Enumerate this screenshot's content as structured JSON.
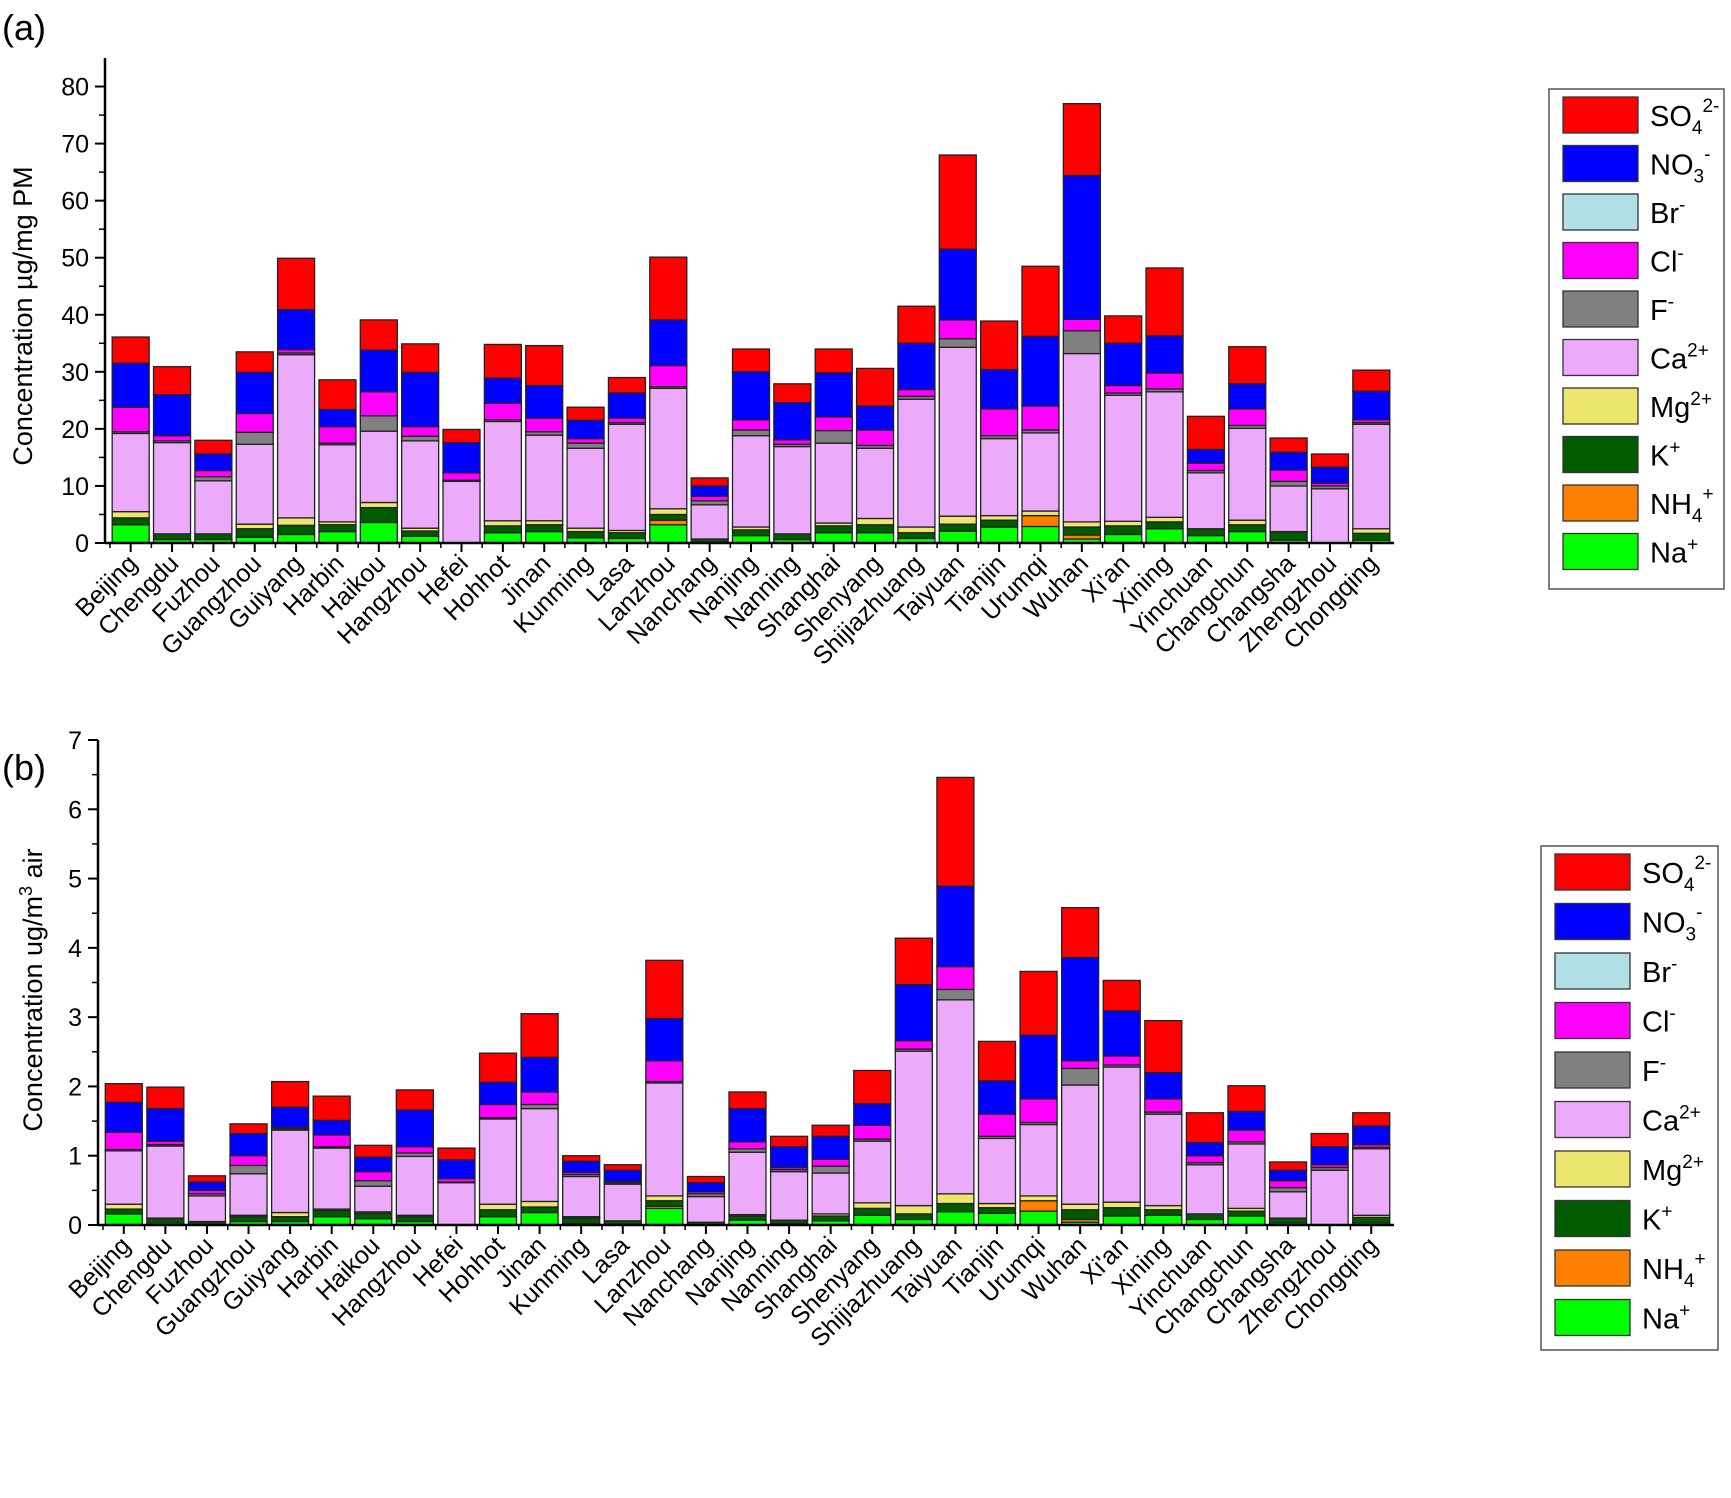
{
  "figure": {
    "panels": [
      "(a)",
      "(b)"
    ]
  },
  "legend": {
    "entries": [
      {
        "key": "SO4",
        "base": "SO",
        "sub": "4",
        "sup": "2-",
        "color": "#ff0000"
      },
      {
        "key": "NO3",
        "base": "NO",
        "sub": "3",
        "sup": "-",
        "color": "#0000ff"
      },
      {
        "key": "Br",
        "base": "Br",
        "sub": "",
        "sup": "-",
        "color": "#b0e0e6"
      },
      {
        "key": "Cl",
        "base": "Cl",
        "sub": "",
        "sup": "-",
        "color": "#ff00ff"
      },
      {
        "key": "F",
        "base": "F",
        "sub": "",
        "sup": "-",
        "color": "#808080"
      },
      {
        "key": "Ca",
        "base": "Ca",
        "sub": "",
        "sup": "2+",
        "color": "#ecabfa"
      },
      {
        "key": "Mg",
        "base": "Mg",
        "sub": "",
        "sup": "2+",
        "color": "#ece66e"
      },
      {
        "key": "K",
        "base": "K",
        "sub": "",
        "sup": "+",
        "color": "#005a00"
      },
      {
        "key": "NH4",
        "base": "NH",
        "sub": "4",
        "sup": "+",
        "color": "#ff8000"
      },
      {
        "key": "Na",
        "base": "Na",
        "sub": "",
        "sup": "+",
        "color": "#00ff00"
      }
    ]
  },
  "chart_data": [
    {
      "type": "bar",
      "stacked": true,
      "panel": "(a)",
      "title": "",
      "xlabel": "",
      "ylabel": "Concentration µg/mg PM",
      "ylim": [
        0,
        85
      ],
      "yticks": [
        0,
        10,
        20,
        30,
        40,
        50,
        60,
        70,
        80
      ],
      "grid": false,
      "legend_position": "right",
      "categories": [
        "Beijing",
        "Chengdu",
        "Fuzhou",
        "Guangzhou",
        "Guiyang",
        "Harbin",
        "Haikou",
        "Hangzhou",
        "Hefei",
        "Hohhot",
        "Jinan",
        "Kunming",
        "Lasa",
        "Lanzhou",
        "Nanchang",
        "Nanjing",
        "Nanning",
        "Shanghai",
        "Shenyang",
        "Shijiazhuang",
        "Taiyuan",
        "Tianjin",
        "Urumqi",
        "Wuhan",
        "Xi'an",
        "Xining",
        "Yinchuan",
        "Changchun",
        "Changsha",
        "Zhengzhou",
        "Chongqing"
      ],
      "series": [
        {
          "name": "Na+",
          "key": "Na",
          "values": [
            3.2,
            0.6,
            0.6,
            1.0,
            1.5,
            2.0,
            3.6,
            1.2,
            0.0,
            1.8,
            2.0,
            0.9,
            0.8,
            3.2,
            0.0,
            1.3,
            0.6,
            1.8,
            1.8,
            0.8,
            2.1,
            2.8,
            2.9,
            0.7,
            1.5,
            2.5,
            1.3,
            2.0,
            0.5,
            0.0,
            0.5
          ]
        },
        {
          "name": "NH4+",
          "key": "NH4",
          "values": [
            0.0,
            0.0,
            0.0,
            0.0,
            0.0,
            0.0,
            0.0,
            0.0,
            0.0,
            0.0,
            0.0,
            0.0,
            0.0,
            0.8,
            0.0,
            0.0,
            0.0,
            0.0,
            0.0,
            0.0,
            0.0,
            0.0,
            1.9,
            0.7,
            0.0,
            0.0,
            0.0,
            0.0,
            0.0,
            0.0,
            0.0
          ]
        },
        {
          "name": "K+",
          "key": "K",
          "values": [
            1.2,
            1.0,
            1.0,
            1.5,
            1.6,
            1.2,
            2.6,
            0.9,
            0.0,
            1.2,
            1.2,
            1.1,
            1.0,
            1.0,
            0.7,
            1.0,
            1.0,
            1.2,
            1.4,
            1.0,
            1.2,
            1.2,
            0.0,
            1.4,
            1.5,
            1.2,
            1.2,
            1.2,
            1.5,
            0.0,
            1.2
          ]
        },
        {
          "name": "Mg2+",
          "key": "Mg",
          "values": [
            1.1,
            0.0,
            0.0,
            0.8,
            1.3,
            0.5,
            0.9,
            0.5,
            0.0,
            0.9,
            0.7,
            0.6,
            0.4,
            1.0,
            0.0,
            0.5,
            0.0,
            0.5,
            1.1,
            1.0,
            1.4,
            0.8,
            0.8,
            0.9,
            0.8,
            0.8,
            0.0,
            0.8,
            0.0,
            0.0,
            0.8
          ]
        },
        {
          "name": "Ca2+",
          "key": "Ca",
          "values": [
            13.7,
            16.0,
            9.3,
            14.0,
            28.6,
            13.5,
            12.5,
            15.3,
            10.8,
            17.4,
            15.0,
            14.0,
            18.6,
            21.1,
            6.0,
            16.0,
            15.3,
            14.0,
            12.3,
            22.4,
            29.6,
            13.5,
            13.7,
            29.5,
            22.1,
            22.0,
            9.8,
            16.1,
            8.0,
            9.5,
            18.3
          ]
        },
        {
          "name": "F-",
          "key": "F",
          "values": [
            0.3,
            0.3,
            0.7,
            2.1,
            0.3,
            0.3,
            2.7,
            0.8,
            0.2,
            0.3,
            0.6,
            0.9,
            0.3,
            0.3,
            0.7,
            1.0,
            0.4,
            2.2,
            0.5,
            0.5,
            1.5,
            0.5,
            0.5,
            4.0,
            0.4,
            0.5,
            0.4,
            0.5,
            0.8,
            0.5,
            0.3
          ]
        },
        {
          "name": "Cl-",
          "key": "Cl",
          "values": [
            4.3,
            0.9,
            1.1,
            3.3,
            0.6,
            2.9,
            4.2,
            1.7,
            1.3,
            2.9,
            2.4,
            0.8,
            0.8,
            3.7,
            0.8,
            1.8,
            0.8,
            2.4,
            2.7,
            1.2,
            3.3,
            4.7,
            4.2,
            2.0,
            1.3,
            2.8,
            1.3,
            2.9,
            2.0,
            0.5,
            0.5
          ]
        },
        {
          "name": "Br-",
          "key": "Br",
          "values": [
            0,
            0,
            0,
            0,
            0,
            0,
            0,
            0,
            0,
            0,
            0,
            0,
            0,
            0,
            0,
            0,
            0,
            0,
            0,
            0,
            0,
            0,
            0,
            0,
            0,
            0,
            0,
            0,
            0,
            0,
            0
          ]
        },
        {
          "name": "NO3-",
          "key": "NO3",
          "values": [
            7.7,
            7.2,
            2.9,
            7.2,
            7.0,
            3.0,
            7.3,
            9.5,
            5.3,
            4.4,
            5.7,
            3.2,
            4.4,
            8.0,
            1.8,
            8.4,
            6.5,
            7.7,
            4.2,
            8.1,
            12.4,
            6.9,
            12.2,
            25.2,
            7.4,
            6.5,
            2.4,
            4.4,
            3.1,
            2.8,
            5.0
          ]
        },
        {
          "name": "SO42-",
          "key": "SO4",
          "values": [
            4.6,
            4.9,
            2.4,
            3.6,
            9.0,
            5.2,
            5.3,
            5.0,
            2.3,
            5.9,
            7.0,
            2.3,
            2.7,
            11.0,
            1.4,
            4.0,
            3.3,
            4.2,
            6.6,
            6.5,
            16.5,
            8.5,
            12.3,
            12.6,
            4.8,
            11.9,
            5.8,
            6.5,
            2.5,
            2.3,
            3.7
          ]
        }
      ]
    },
    {
      "type": "bar",
      "stacked": true,
      "panel": "(b)",
      "title": "",
      "xlabel": "",
      "ylabel": "Concentration ug/m3 air",
      "ylim": [
        0,
        7
      ],
      "yticks": [
        0,
        1,
        2,
        3,
        4,
        5,
        6,
        7
      ],
      "grid": false,
      "legend_position": "right",
      "categories": [
        "Beijing",
        "Chengdu",
        "Fuzhou",
        "Guangzhou",
        "Guiyang",
        "Harbin",
        "Haikou",
        "Hangzhou",
        "Hefei",
        "Hohhot",
        "Jinan",
        "Kunming",
        "Lasa",
        "Lanzhou",
        "Nanchang",
        "Nanjing",
        "Nanning",
        "Shanghai",
        "Shenyang",
        "Shijiazhuang",
        "Taiyuan",
        "Tianjin",
        "Urumqi",
        "Wuhan",
        "Xi'an",
        "Xining",
        "Yinchuan",
        "Changchun",
        "Changsha",
        "Zhengzhou",
        "Chongqing"
      ],
      "series": [
        {
          "name": "Na+",
          "key": "Na",
          "values": [
            0.16,
            0.03,
            0.01,
            0.05,
            0.05,
            0.12,
            0.09,
            0.05,
            0.0,
            0.12,
            0.18,
            0.02,
            0.01,
            0.24,
            0.0,
            0.07,
            0.02,
            0.06,
            0.14,
            0.08,
            0.19,
            0.17,
            0.2,
            0.04,
            0.13,
            0.14,
            0.08,
            0.13,
            0.03,
            0.0,
            0.03
          ]
        },
        {
          "name": "NH4+",
          "key": "NH4",
          "values": [
            0.0,
            0.0,
            0.0,
            0.0,
            0.0,
            0.0,
            0.0,
            0.0,
            0.0,
            0.0,
            0.0,
            0.0,
            0.0,
            0.03,
            0.0,
            0.0,
            0.0,
            0.0,
            0.0,
            0.0,
            0.0,
            0.0,
            0.15,
            0.04,
            0.0,
            0.0,
            0.0,
            0.0,
            0.0,
            0.0,
            0.0
          ]
        },
        {
          "name": "K+",
          "key": "K",
          "values": [
            0.07,
            0.06,
            0.04,
            0.07,
            0.07,
            0.09,
            0.08,
            0.07,
            0.0,
            0.1,
            0.08,
            0.08,
            0.05,
            0.08,
            0.04,
            0.06,
            0.05,
            0.07,
            0.1,
            0.08,
            0.12,
            0.08,
            0.0,
            0.14,
            0.12,
            0.08,
            0.08,
            0.07,
            0.07,
            0.0,
            0.08
          ]
        },
        {
          "name": "Mg2+",
          "key": "Mg",
          "values": [
            0.07,
            0.01,
            0.0,
            0.02,
            0.06,
            0.02,
            0.02,
            0.02,
            0.0,
            0.08,
            0.08,
            0.02,
            0.0,
            0.07,
            0.0,
            0.02,
            0.0,
            0.03,
            0.08,
            0.12,
            0.14,
            0.06,
            0.07,
            0.08,
            0.08,
            0.06,
            0.0,
            0.04,
            0.0,
            0.0,
            0.03
          ]
        },
        {
          "name": "Ca2+",
          "key": "Ca",
          "values": [
            0.77,
            1.04,
            0.37,
            0.6,
            1.19,
            0.88,
            0.37,
            0.85,
            0.61,
            1.23,
            1.34,
            0.58,
            0.53,
            1.63,
            0.37,
            0.9,
            0.7,
            0.59,
            0.89,
            2.23,
            2.8,
            0.94,
            1.03,
            1.72,
            1.95,
            1.32,
            0.71,
            0.93,
            0.38,
            0.79,
            0.96
          ]
        },
        {
          "name": "F-",
          "key": "F",
          "values": [
            0.02,
            0.02,
            0.03,
            0.12,
            0.02,
            0.02,
            0.08,
            0.05,
            0.01,
            0.02,
            0.06,
            0.03,
            0.02,
            0.02,
            0.04,
            0.05,
            0.03,
            0.1,
            0.03,
            0.03,
            0.15,
            0.03,
            0.03,
            0.24,
            0.03,
            0.03,
            0.03,
            0.03,
            0.06,
            0.04,
            0.02
          ]
        },
        {
          "name": "Cl-",
          "key": "Cl",
          "values": [
            0.25,
            0.05,
            0.05,
            0.14,
            0.02,
            0.17,
            0.13,
            0.09,
            0.05,
            0.19,
            0.18,
            0.03,
            0.02,
            0.3,
            0.03,
            0.1,
            0.03,
            0.1,
            0.2,
            0.12,
            0.33,
            0.32,
            0.34,
            0.11,
            0.13,
            0.19,
            0.1,
            0.17,
            0.1,
            0.04,
            0.04
          ]
        },
        {
          "name": "Br-",
          "key": "Br",
          "values": [
            0,
            0,
            0,
            0,
            0,
            0,
            0,
            0,
            0,
            0,
            0,
            0,
            0,
            0,
            0,
            0,
            0,
            0,
            0,
            0,
            0,
            0,
            0,
            0,
            0,
            0,
            0,
            0,
            0,
            0,
            0
          ]
        },
        {
          "name": "NO3-",
          "key": "NO3",
          "values": [
            0.43,
            0.47,
            0.12,
            0.32,
            0.29,
            0.21,
            0.21,
            0.53,
            0.27,
            0.32,
            0.5,
            0.16,
            0.16,
            0.61,
            0.13,
            0.48,
            0.3,
            0.33,
            0.31,
            0.81,
            1.16,
            0.48,
            0.92,
            1.49,
            0.65,
            0.38,
            0.19,
            0.27,
            0.15,
            0.26,
            0.27
          ]
        },
        {
          "name": "SO42-",
          "key": "SO4",
          "values": [
            0.27,
            0.31,
            0.09,
            0.14,
            0.37,
            0.35,
            0.17,
            0.29,
            0.17,
            0.42,
            0.63,
            0.08,
            0.08,
            0.84,
            0.09,
            0.24,
            0.15,
            0.16,
            0.48,
            0.67,
            1.57,
            0.57,
            0.92,
            0.72,
            0.44,
            0.75,
            0.43,
            0.37,
            0.12,
            0.19,
            0.19
          ]
        }
      ]
    }
  ]
}
